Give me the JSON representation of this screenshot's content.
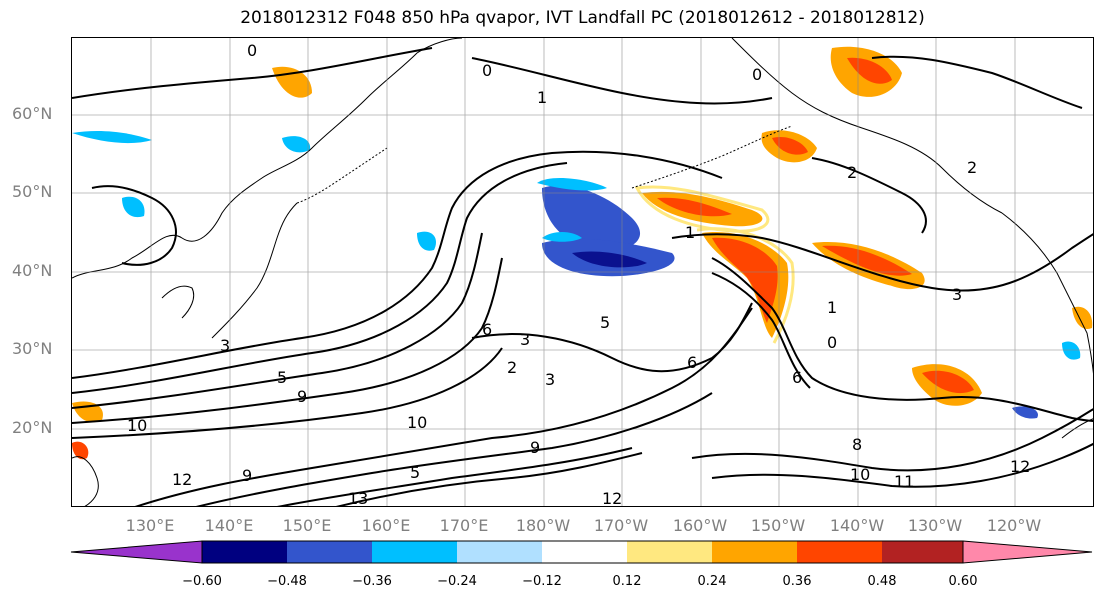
{
  "title": "2018012312 F048 850 hPa qvapor, IVT Landfall PC (2018012612 - 2018012812)",
  "map": {
    "lat_labels": [
      "60°N",
      "50°N",
      "40°N",
      "30°N",
      "20°N"
    ],
    "lon_labels": [
      "130°E",
      "140°E",
      "150°E",
      "160°E",
      "170°E",
      "180°W",
      "170°W",
      "160°W",
      "150°W",
      "140°W",
      "130°W",
      "120°W"
    ],
    "contour_labels": [
      "0",
      "0",
      "0",
      "0",
      "1",
      "1",
      "1",
      "2",
      "2",
      "2",
      "3",
      "3",
      "3",
      "3",
      "5",
      "5",
      "5",
      "6",
      "6",
      "6",
      "8",
      "9",
      "9",
      "9",
      "10",
      "10",
      "10",
      "11",
      "12",
      "12",
      "12",
      "13"
    ]
  },
  "colorbar": {
    "tick_labels": [
      "−0.60",
      "−0.48",
      "−0.36",
      "−0.24",
      "−0.12",
      "0.12",
      "0.24",
      "0.36",
      "0.48",
      "0.60"
    ],
    "colors": [
      "#9933cc",
      "#000080",
      "#3355cc",
      "#00bfff",
      "#b0e0ff",
      "#ffffff",
      "#ffe880",
      "#ffa500",
      "#ff4500",
      "#b22222",
      "#ff88aa"
    ]
  }
}
